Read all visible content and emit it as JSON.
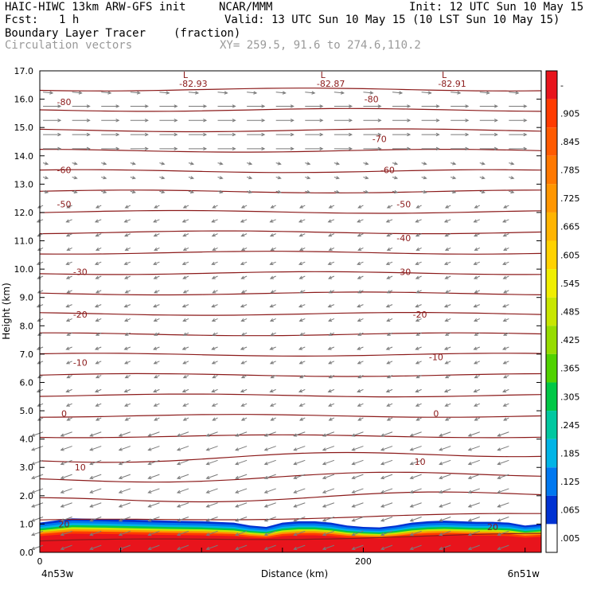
{
  "header": {
    "model": "HAIC-HIWC 13km ARW-GFS init",
    "org": "NCAR/MMM",
    "init": "Init: 12 UTC Sun 10 May 15",
    "fcst_label": "Fcst:",
    "fcst_value": "1 h",
    "valid": "Valid: 13 UTC Sun 10 May 15 (10 LST Sun 10 May 15)",
    "field": "Boundary Layer Tracer",
    "units": "(fraction)",
    "vectors": "Circulation vectors",
    "xy": "XY= 259.5, 91.6 to 274.6,110.2"
  },
  "colors": {
    "contour": "#8b1a1a",
    "vector": "#7a7a7a",
    "header_grey": "#9a9a9a"
  },
  "chart_data": {
    "type": "contour-cross-section",
    "ylabel": "Height (km)",
    "xlabel": "Distance (km)",
    "ylim": [
      0.0,
      17.0
    ],
    "yticks": [
      "0.0",
      "1.0",
      "2.0",
      "3.0",
      "4.0",
      "5.0",
      "6.0",
      "7.0",
      "8.0",
      "9.0",
      "10.0",
      "11.0",
      "12.0",
      "13.0",
      "14.0",
      "15.0",
      "16.0",
      "17.0"
    ],
    "xlim": [
      0,
      310
    ],
    "xticks": [
      {
        "x": 0,
        "label": "0"
      },
      {
        "x": 200,
        "label": "200"
      }
    ],
    "x_endpoint_labels": {
      "left": "4n53w",
      "right": "6n51w"
    },
    "lows": [
      {
        "x": 90,
        "label": "L",
        "value": "-82.93"
      },
      {
        "x": 175,
        "label": "L",
        "value": "-82.87"
      },
      {
        "x": 250,
        "label": "L",
        "value": "-82.91"
      }
    ],
    "contour_labels": [
      {
        "x": 15,
        "y": 15.9,
        "label": "-80"
      },
      {
        "x": 205,
        "y": 16.0,
        "label": "-80"
      },
      {
        "x": 210,
        "y": 14.6,
        "label": "-70"
      },
      {
        "x": 15,
        "y": 13.5,
        "label": "-60"
      },
      {
        "x": 215,
        "y": 13.5,
        "label": "-60"
      },
      {
        "x": 15,
        "y": 12.3,
        "label": "-50"
      },
      {
        "x": 225,
        "y": 12.3,
        "label": "-50"
      },
      {
        "x": 225,
        "y": 11.1,
        "label": "-40"
      },
      {
        "x": 25,
        "y": 9.9,
        "label": "-30"
      },
      {
        "x": 225,
        "y": 9.9,
        "label": "-30"
      },
      {
        "x": 25,
        "y": 8.4,
        "label": "-20"
      },
      {
        "x": 235,
        "y": 8.4,
        "label": "-20"
      },
      {
        "x": 25,
        "y": 6.7,
        "label": "-10"
      },
      {
        "x": 245,
        "y": 6.9,
        "label": "-10"
      },
      {
        "x": 15,
        "y": 4.9,
        "label": "0"
      },
      {
        "x": 245,
        "y": 4.9,
        "label": "0"
      },
      {
        "x": 25,
        "y": 3.0,
        "label": "10"
      },
      {
        "x": 235,
        "y": 3.2,
        "label": "10"
      },
      {
        "x": 15,
        "y": 1.0,
        "label": "20"
      },
      {
        "x": 280,
        "y": 0.9,
        "label": "20"
      }
    ],
    "colorbar": {
      "labels": [
        "-",
        ".905",
        ".845",
        ".785",
        ".725",
        ".665",
        ".605",
        ".545",
        ".485",
        ".425",
        ".365",
        ".305",
        ".245",
        ".185",
        ".125",
        ".065",
        ".005"
      ],
      "colors": [
        "#e8141c",
        "#ff3b00",
        "#ff5a00",
        "#ff7800",
        "#ff9600",
        "#ffb400",
        "#ffd200",
        "#f0ee00",
        "#c8e600",
        "#96dc00",
        "#50d200",
        "#00c846",
        "#00c8a0",
        "#00b4e6",
        "#0078f0",
        "#0032d2",
        "#ffffff"
      ]
    },
    "tracer_profile": {
      "x": [
        0,
        20,
        40,
        60,
        80,
        100,
        120,
        130,
        140,
        150,
        160,
        170,
        180,
        190,
        200,
        210,
        220,
        230,
        240,
        250,
        260,
        270,
        280,
        290,
        300,
        310
      ],
      "top_km": [
        1.05,
        1.2,
        1.18,
        1.15,
        1.12,
        1.1,
        1.05,
        0.95,
        0.9,
        1.05,
        1.1,
        1.1,
        1.05,
        0.95,
        0.9,
        0.88,
        0.95,
        1.05,
        1.1,
        1.12,
        1.1,
        1.08,
        1.08,
        1.05,
        0.95,
        1.0
      ]
    }
  }
}
